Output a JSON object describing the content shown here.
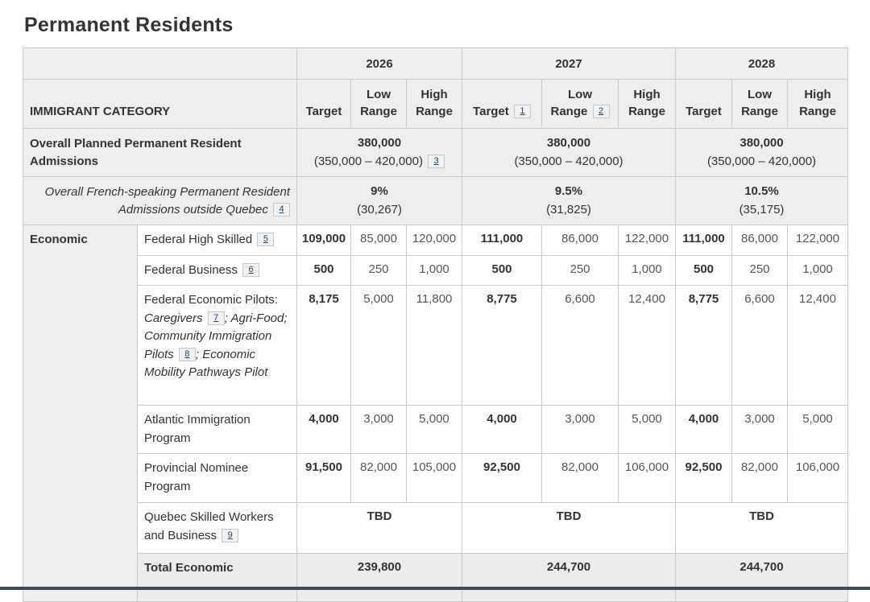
{
  "page": {
    "title": "Permanent Residents"
  },
  "colors": {
    "header_bg": "#eeeeee",
    "total_row_bg": "#ececec",
    "border": "#c9c9c9",
    "footnote_link": "#284162",
    "bottom_edge_bar": "#3d4b59"
  },
  "table": {
    "category_header": "IMMIGRANT CATEGORY",
    "column_keys": [
      "target",
      "low-range",
      "high-range"
    ],
    "year_groups": [
      {
        "year": "2026",
        "columns": [
          {
            "label": "Target"
          },
          {
            "label": "Low Range"
          },
          {
            "label": "High Range"
          }
        ]
      },
      {
        "year": "2027",
        "columns": [
          {
            "label": "Target",
            "footnote": "1"
          },
          {
            "label": "Low Range",
            "footnote": "2"
          },
          {
            "label": "High Range"
          }
        ]
      },
      {
        "year": "2028",
        "columns": [
          {
            "label": "Target"
          },
          {
            "label": "Low Range"
          },
          {
            "label": "High Range"
          }
        ]
      }
    ],
    "summary_rows": [
      {
        "key": "overall-admissions",
        "label": "Overall Planned Permanent Resident Admissions",
        "label_style": "bold",
        "cells": [
          {
            "main": "380,000",
            "sub": "(350,000 – 420,000)",
            "footnote": "3"
          },
          {
            "main": "380,000",
            "sub": "(350,000 – 420,000)"
          },
          {
            "main": "380,000",
            "sub": "(350,000 – 420,000)"
          }
        ]
      },
      {
        "key": "french-speaking",
        "label": "Overall French-speaking Permanent Resident Admissions outside Quebec",
        "label_footnote": "4",
        "label_style": "italic-right",
        "cells": [
          {
            "main": "9%",
            "sub": "(30,267)"
          },
          {
            "main": "9.5%",
            "sub": "(31,825)"
          },
          {
            "main": "10.5%",
            "sub": "(35,175)"
          }
        ]
      }
    ],
    "economic_group": {
      "label": "Economic",
      "rows": [
        {
          "key": "federal-high-skilled",
          "label_segments": [
            {
              "text": "Federal High Skilled"
            },
            {
              "footnote": "5"
            }
          ],
          "values": [
            "109,000",
            "85,000",
            "120,000",
            "111,000",
            "86,000",
            "122,000",
            "111,000",
            "86,000",
            "122,000"
          ]
        },
        {
          "key": "federal-business",
          "label_segments": [
            {
              "text": "Federal Business"
            },
            {
              "footnote": "6"
            }
          ],
          "values": [
            "500",
            "250",
            "1,000",
            "500",
            "250",
            "1,000",
            "500",
            "250",
            "1,000"
          ]
        },
        {
          "key": "federal-economic-pilots",
          "label_segments": [
            {
              "text": "Federal Economic Pilots: "
            },
            {
              "text": "Caregivers",
              "italic": true
            },
            {
              "footnote": "7"
            },
            {
              "text": "; Agri-Food; Community Immigration Pilots",
              "italic": true
            },
            {
              "footnote": "8"
            },
            {
              "text": "; Economic Mobility Pathways Pilot",
              "italic": true
            }
          ],
          "values": [
            "8,175",
            "5,000",
            "11,800",
            "8,775",
            "6,600",
            "12,400",
            "8,775",
            "6,600",
            "12,400"
          ]
        },
        {
          "key": "atlantic-immigration-program",
          "label_segments": [
            {
              "text": "Atlantic Immigration Program"
            }
          ],
          "values": [
            "4,000",
            "3,000",
            "5,000",
            "4,000",
            "3,000",
            "5,000",
            "4,000",
            "3,000",
            "5,000"
          ]
        },
        {
          "key": "provincial-nominee-program",
          "label_segments": [
            {
              "text": "Provincial Nominee Program"
            }
          ],
          "values": [
            "91,500",
            "82,000",
            "105,000",
            "92,500",
            "82,000",
            "106,000",
            "92,500",
            "82,000",
            "106,000"
          ]
        },
        {
          "key": "quebec-skilled-workers",
          "label_segments": [
            {
              "text": "Quebec Skilled Workers and Business"
            },
            {
              "footnote": "9"
            }
          ],
          "span_values": [
            "TBD",
            "TBD",
            "TBD"
          ]
        },
        {
          "key": "total-economic",
          "label_segments": [
            {
              "text": "Total Economic",
              "bold": true
            }
          ],
          "span_values": [
            "239,800",
            "244,700",
            "244,700"
          ],
          "row_style": "total"
        }
      ]
    }
  }
}
